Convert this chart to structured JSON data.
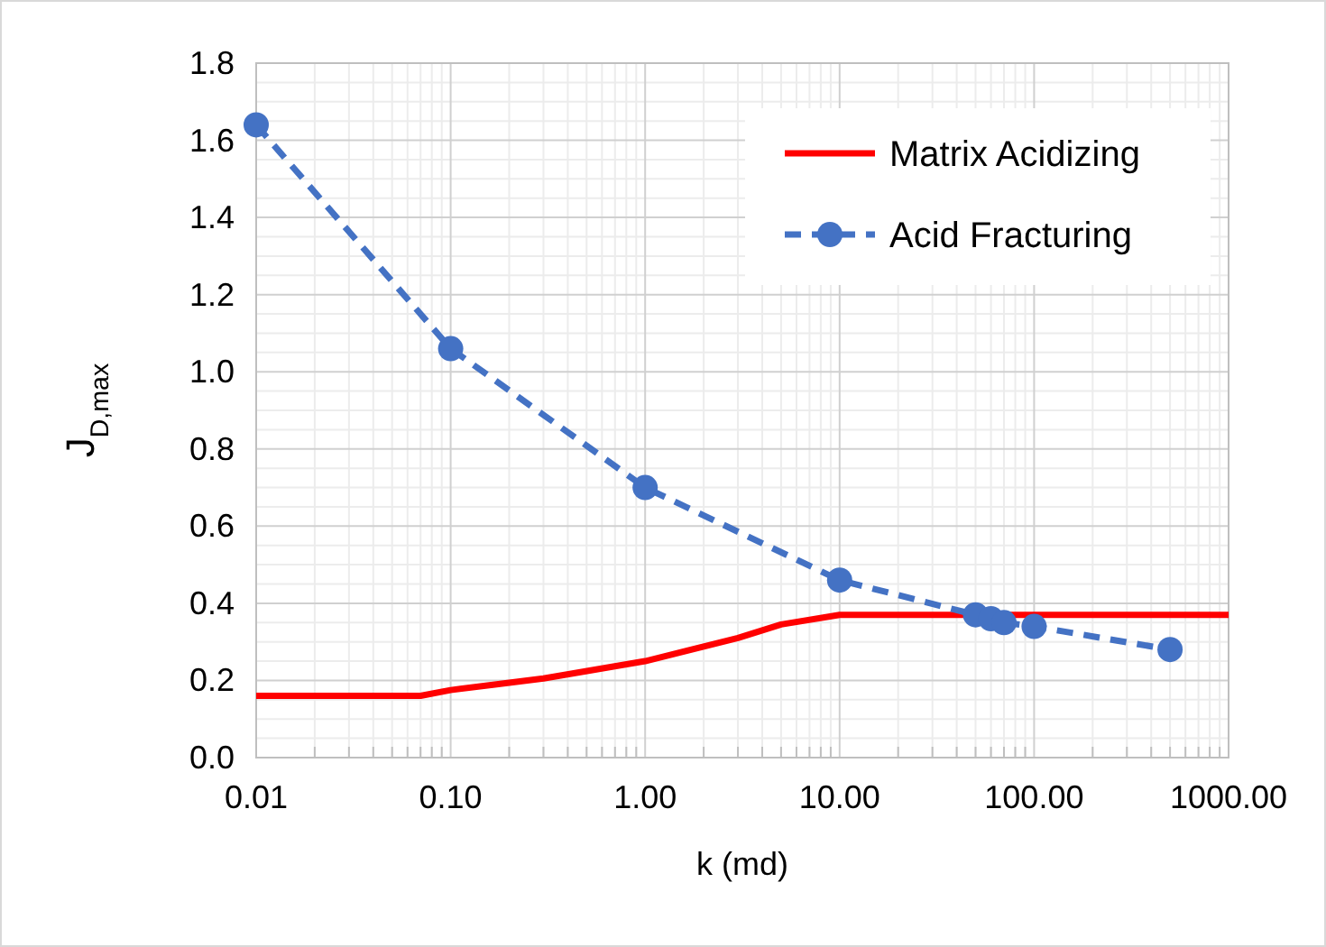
{
  "chart_data": {
    "type": "line",
    "xlabel": "k (md)",
    "ylabel": "J$_{D,max}$",
    "log": "x",
    "grid": true,
    "legend": "top right",
    "xlim": [
      0.01,
      1000
    ],
    "xticks": [
      {
        "value": 0.01,
        "label": "0.01"
      },
      {
        "value": 0.1,
        "label": "0.10"
      },
      {
        "value": 1,
        "label": "1.00"
      },
      {
        "value": 10,
        "label": "10.00"
      },
      {
        "value": 100,
        "label": "100.00"
      },
      {
        "value": 1000,
        "label": "1000.00"
      }
    ],
    "ylim": [
      0,
      1.8
    ],
    "yticks": [
      {
        "value": 0,
        "label": "0.0"
      },
      {
        "value": 0.2,
        "label": "0.2"
      },
      {
        "value": 0.4,
        "label": "0.4"
      },
      {
        "value": 0.6,
        "label": "0.6"
      },
      {
        "value": 0.8,
        "label": "0.8"
      },
      {
        "value": 1,
        "label": "1.0"
      },
      {
        "value": 1.2,
        "label": "1.2"
      },
      {
        "value": 1.4,
        "label": "1.4"
      },
      {
        "value": 1.6,
        "label": "1.6"
      },
      {
        "value": 1.8,
        "label": "1.8"
      }
    ],
    "series": [
      {
        "name": "Matrix Acidizing",
        "color": "#ff0000",
        "marker": "none",
        "line_style": "solid",
        "x": [
          0.01,
          0.07,
          0.1,
          0.3,
          1,
          3,
          5,
          10,
          1000
        ],
        "values": [
          0.16,
          0.16,
          0.175,
          0.205,
          0.25,
          0.31,
          0.345,
          0.37,
          0.37
        ]
      },
      {
        "name": "Acid Fracturing",
        "color": "#4472c4",
        "marker": "circle",
        "line_style": "dashed",
        "x": [
          0.01,
          0.1,
          1,
          10,
          50,
          60,
          70,
          100,
          500
        ],
        "values": [
          1.64,
          1.06,
          0.7,
          0.46,
          0.37,
          0.36,
          0.35,
          0.34,
          0.28
        ]
      }
    ]
  }
}
